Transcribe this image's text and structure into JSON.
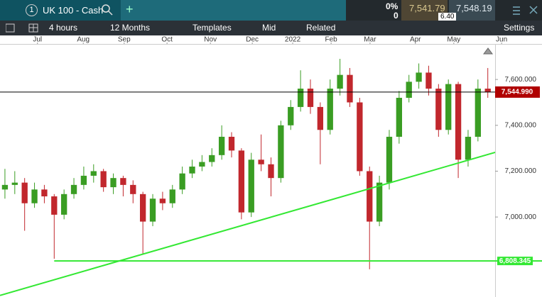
{
  "header": {
    "tab_number": "1",
    "instrument": "UK 100 - Cash",
    "add": "+",
    "change_pct": "0%",
    "change": "0",
    "sell": "7,541.79",
    "spread": "6.40",
    "buy": "7,548.19"
  },
  "toolbar": {
    "interval": "4 hours",
    "range": "12 Months",
    "templates": "Templates",
    "price_type": "Mid",
    "related": "Related",
    "settings": "Settings"
  },
  "chart_data": {
    "type": "candlestick",
    "up_color": "#3a9d23",
    "down_color": "#c1272d",
    "x": [
      1,
      3,
      5,
      7,
      9,
      11,
      13,
      15,
      17,
      19,
      21,
      23,
      25,
      27,
      29,
      31,
      33,
      35,
      37,
      39,
      41,
      43,
      45,
      47,
      49,
      51,
      53,
      55,
      57,
      59,
      61,
      63,
      65,
      67,
      69,
      71,
      73,
      75,
      77,
      79,
      81,
      83,
      85,
      87,
      89,
      91,
      93,
      95,
      97,
      99
    ],
    "open": [
      7120,
      7140,
      7150,
      7060,
      7120,
      7090,
      7010,
      7100,
      7140,
      7180,
      7200,
      7130,
      7170,
      7140,
      7100,
      6980,
      7080,
      7060,
      7120,
      7190,
      7220,
      7240,
      7270,
      7350,
      7290,
      7020,
      7250,
      7230,
      7170,
      7400,
      7480,
      7560,
      7480,
      7380,
      7560,
      7620,
      7500,
      7200,
      6980,
      7150,
      7350,
      7520,
      7590,
      7630,
      7560,
      7380,
      7580,
      7250,
      7350,
      7560
    ],
    "high": [
      7210,
      7200,
      7170,
      7150,
      7140,
      7100,
      7120,
      7170,
      7220,
      7230,
      7210,
      7190,
      7180,
      7160,
      7110,
      7100,
      7110,
      7140,
      7220,
      7250,
      7270,
      7300,
      7400,
      7370,
      7300,
      7280,
      7360,
      7260,
      7420,
      7510,
      7640,
      7600,
      7500,
      7600,
      7690,
      7650,
      7520,
      7220,
      7180,
      7380,
      7550,
      7620,
      7670,
      7660,
      7580,
      7600,
      7590,
      7380,
      7600,
      7650
    ],
    "low": [
      7080,
      7100,
      6940,
      7040,
      7060,
      6818,
      6990,
      7080,
      7120,
      7150,
      7110,
      7100,
      7090,
      7060,
      6840,
      6960,
      7030,
      7040,
      7100,
      7170,
      7200,
      7220,
      7250,
      7260,
      6990,
      7000,
      7200,
      7090,
      7150,
      7380,
      7460,
      7450,
      7230,
      7360,
      7530,
      7480,
      7180,
      6772,
      6960,
      7120,
      7320,
      7500,
      7560,
      7530,
      7350,
      7360,
      7170,
      7220,
      7330,
      7520
    ],
    "close": [
      7140,
      7150,
      7060,
      7120,
      7090,
      7010,
      7100,
      7140,
      7180,
      7200,
      7130,
      7170,
      7140,
      7100,
      6980,
      7080,
      7060,
      7120,
      7190,
      7220,
      7240,
      7270,
      7350,
      7290,
      7020,
      7250,
      7230,
      7170,
      7400,
      7480,
      7560,
      7480,
      7380,
      7560,
      7620,
      7500,
      7200,
      6980,
      7150,
      7350,
      7520,
      7590,
      7630,
      7560,
      7380,
      7580,
      7250,
      7350,
      7560,
      7545
    ],
    "xlim": [
      0,
      110
    ],
    "xticks": [
      {
        "value": 7.6,
        "label": "Jul"
      },
      {
        "value": 16.9,
        "label": "Aug"
      },
      {
        "value": 25.2,
        "label": "Sep"
      },
      {
        "value": 33.9,
        "label": "Oct"
      },
      {
        "value": 42.7,
        "label": "Nov"
      },
      {
        "value": 51.2,
        "label": "Dec"
      },
      {
        "value": 59.4,
        "label": "2022"
      },
      {
        "value": 67.2,
        "label": "Feb"
      },
      {
        "value": 75.1,
        "label": "Mar"
      },
      {
        "value": 84.3,
        "label": "Apr"
      },
      {
        "value": 92.1,
        "label": "May"
      },
      {
        "value": 101.8,
        "label": "Jun"
      }
    ],
    "ylim": [
      6651,
      7755
    ],
    "yticks": [
      {
        "value": 7000,
        "label": "7,000.000"
      },
      {
        "value": 7200,
        "label": "7,200.000"
      },
      {
        "value": 7400,
        "label": "7,400.000"
      },
      {
        "value": 7600,
        "label": "7,600.000"
      }
    ],
    "last_price": {
      "value": 7544.99,
      "label": "7,544.990",
      "color": "#b00000"
    },
    "support_level": {
      "value": 6808.345,
      "label": "6,808.345",
      "color": "#33e833"
    },
    "trendline": {
      "x": [
        0,
        100.5
      ],
      "values": [
        6658,
        7282
      ],
      "color": "#33e833"
    }
  }
}
